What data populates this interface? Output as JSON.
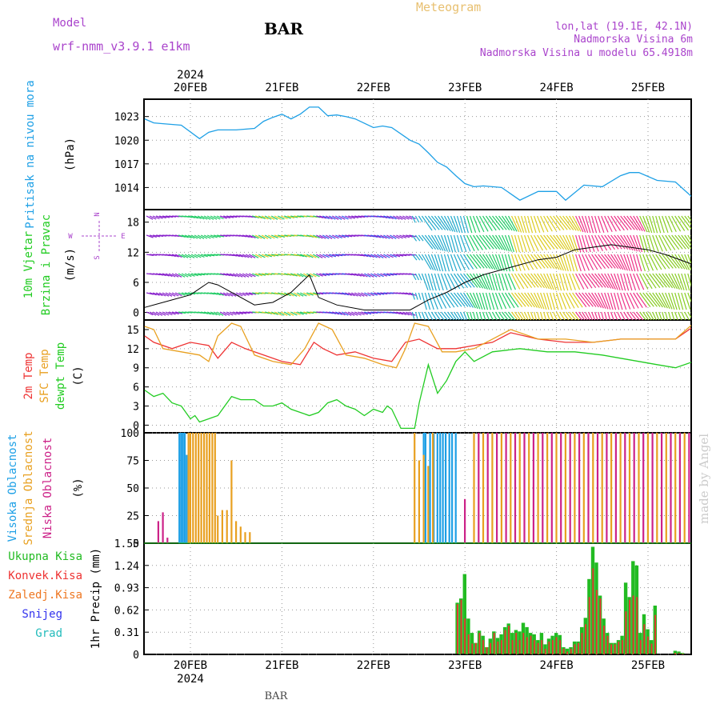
{
  "header": {
    "model_label": "Model",
    "model_name": "wrf-nmm_v3.9.1  e1km",
    "station": "BAR",
    "title": "Meteogram",
    "lonlat": "lon,lat (19.1E, 42.1N)",
    "elevation": "Nadmorska Visina 6m",
    "model_elevation": "Nadmorska Visina u modelu 65.4918m"
  },
  "time_axis": {
    "year": "2024",
    "days": [
      "20FEB",
      "21FEB",
      "22FEB",
      "23FEB",
      "24FEB",
      "25FEB"
    ],
    "footer_label": "BAR"
  },
  "watermark": "made by Angel",
  "panels": {
    "pressure": {
      "label": "Pritisak na nivou mora",
      "unit": "(hPa)",
      "ticks": [
        "1014",
        "1017",
        "1020",
        "1023"
      ],
      "color": "#1ea0e6"
    },
    "wind": {
      "label1": "10m Vjetar",
      "label2": "Brzina i Pravac",
      "unit": "(m/s)",
      "ticks": [
        "0",
        "6",
        "12",
        "18"
      ],
      "compass_n": "N",
      "compass_w": "W",
      "compass_e": "E",
      "compass_s": "S",
      "color": "#22cc22"
    },
    "temp": {
      "label1": "2m Temp",
      "label2": "SFC Temp",
      "label3": "dewpt Temp",
      "unit": "(C)",
      "ticks": [
        "0",
        "3",
        "6",
        "9",
        "12",
        "15"
      ],
      "colors": {
        "t2m": "#ee3333",
        "sfc": "#e8a020",
        "dewpt": "#22cc22"
      }
    },
    "clouds": {
      "label1": "Visoka Oblacnost",
      "label2": "Srednja Oblacnost",
      "label3": "Niska Oblacnost",
      "unit": "(%)",
      "ticks": [
        "0",
        "25",
        "50",
        "75",
        "100"
      ],
      "colors": {
        "high": "#1ea0e6",
        "mid": "#e8a020",
        "low": "#cc2288"
      }
    },
    "precip": {
      "unit": "1hr Precip (mm)",
      "ticks": [
        "0",
        "0.31",
        "0.62",
        "0.93",
        "1.24",
        "1.55"
      ],
      "legend": [
        {
          "label": "Ukupna  Kisa",
          "color": "#22bb22"
        },
        {
          "label": "Konvek.Kisa",
          "color": "#ee3333"
        },
        {
          "label": "Zaledj.Kisa",
          "color": "#ee7722"
        },
        {
          "label": "Snijeg",
          "color": "#3333ee"
        },
        {
          "label": "Grad",
          "color": "#22bbbb"
        }
      ]
    }
  },
  "chart_data": [
    {
      "type": "line",
      "title": "Pritisak na nivou mora",
      "ylabel": "(hPa)",
      "ylim": [
        1011.2,
        1025.2
      ],
      "x_unit": "days from 20FEB 00UTC",
      "series": [
        {
          "x": [
            -0.5,
            -0.4,
            -0.3,
            -0.1,
            0.1,
            0.2,
            0.3,
            0.5,
            0.7,
            0.8,
            0.9,
            1.0,
            1.1,
            1.2,
            1.3,
            1.4,
            1.5,
            1.6,
            1.7,
            1.8,
            2.0,
            2.1,
            2.2,
            2.4,
            2.5,
            2.6,
            2.7,
            2.8,
            2.9,
            3.0,
            3.1,
            3.2,
            3.4,
            3.6,
            3.8,
            4.0,
            4.1,
            4.3,
            4.5,
            4.7,
            4.8,
            4.9,
            5.1,
            5.3,
            5.5
          ],
          "y": [
            1022.7,
            1022.2,
            1022.1,
            1021.9,
            1020.2,
            1021.0,
            1021.3,
            1021.3,
            1021.5,
            1022.4,
            1022.9,
            1023.3,
            1022.7,
            1023.3,
            1024.2,
            1024.2,
            1023.1,
            1023.2,
            1023.0,
            1022.7,
            1021.6,
            1021.8,
            1021.6,
            1020.0,
            1019.5,
            1018.4,
            1017.2,
            1016.6,
            1015.5,
            1014.5,
            1014.1,
            1014.2,
            1014.0,
            1012.4,
            1013.5,
            1013.5,
            1012.4,
            1014.3,
            1014.1,
            1015.5,
            1015.9,
            1015.9,
            1014.9,
            1014.7,
            1012.6
          ]
        }
      ]
    },
    {
      "type": "line",
      "title": "10m Vjetar Brzina i Pravac",
      "ylabel": "(m/s)",
      "ylim": [
        -1.5,
        20.5
      ],
      "x_unit": "days from 20FEB 00UTC",
      "series": [
        {
          "name": "Brzina",
          "x": [
            -0.5,
            -0.2,
            0.0,
            0.2,
            0.3,
            0.5,
            0.7,
            0.9,
            1.1,
            1.3,
            1.4,
            1.6,
            1.9,
            2.1,
            2.4,
            2.6,
            2.8,
            3.0,
            3.2,
            3.5,
            3.8,
            4.0,
            4.2,
            4.4,
            4.6,
            4.8,
            5.0,
            5.2,
            5.5
          ],
          "y": [
            1.0,
            2.5,
            3.5,
            6.0,
            5.5,
            3.5,
            1.5,
            2.0,
            4.0,
            7.5,
            3.0,
            1.5,
            0.5,
            0.5,
            0.5,
            2.5,
            4.0,
            6.0,
            7.5,
            9.0,
            10.5,
            11.0,
            12.5,
            13.0,
            13.5,
            13.0,
            12.5,
            11.5,
            9.5
          ]
        }
      ]
    },
    {
      "type": "line",
      "title": "Temp",
      "ylabel": "(C)",
      "ylim": [
        -1.2,
        16.5
      ],
      "x_unit": "days from 20FEB 00UTC",
      "series": [
        {
          "name": "2m Temp",
          "x": [
            -0.5,
            -0.4,
            -0.2,
            0.0,
            0.2,
            0.3,
            0.45,
            0.6,
            0.8,
            1.0,
            1.2,
            1.35,
            1.45,
            1.6,
            1.8,
            2.0,
            2.2,
            2.35,
            2.5,
            2.7,
            2.9,
            3.1,
            3.3,
            3.5,
            3.8,
            4.1,
            4.4,
            4.7,
            5.0,
            5.3,
            5.5
          ],
          "y": [
            14.0,
            13.0,
            12.0,
            13.0,
            12.5,
            10.5,
            13.0,
            12.0,
            11.0,
            10.0,
            9.5,
            13.0,
            12.0,
            11.0,
            11.5,
            10.5,
            10.0,
            13.0,
            13.5,
            12.0,
            12.0,
            12.5,
            13.0,
            14.5,
            13.5,
            13.0,
            13.0,
            13.5,
            13.5,
            13.5,
            15.5
          ]
        },
        {
          "name": "SFC Temp",
          "x": [
            -0.5,
            -0.4,
            -0.3,
            -0.1,
            0.1,
            0.2,
            0.3,
            0.45,
            0.55,
            0.7,
            0.9,
            1.1,
            1.25,
            1.4,
            1.55,
            1.7,
            1.9,
            2.1,
            2.25,
            2.35,
            2.45,
            2.6,
            2.75,
            2.9,
            3.1,
            3.3,
            3.5,
            3.8,
            4.1,
            4.4,
            4.7,
            5.0,
            5.3,
            5.5
          ],
          "y": [
            15.5,
            15.0,
            12.0,
            11.5,
            11.0,
            10.0,
            14.0,
            16.0,
            15.5,
            11.0,
            10.0,
            9.5,
            12.0,
            16.0,
            15.0,
            11.0,
            10.5,
            9.5,
            9.0,
            12.0,
            16.0,
            15.5,
            11.5,
            11.5,
            12.0,
            13.5,
            15.0,
            13.5,
            13.5,
            13.0,
            13.5,
            13.5,
            13.5,
            16.0
          ]
        },
        {
          "name": "dewpt Temp",
          "x": [
            -0.5,
            -0.4,
            -0.3,
            -0.2,
            -0.1,
            0.0,
            0.05,
            0.1,
            0.2,
            0.3,
            0.45,
            0.55,
            0.7,
            0.8,
            0.9,
            1.0,
            1.1,
            1.2,
            1.3,
            1.4,
            1.5,
            1.6,
            1.7,
            1.8,
            1.9,
            2.0,
            2.1,
            2.15,
            2.2,
            2.3,
            2.45,
            2.5,
            2.6,
            2.7,
            2.8,
            2.9,
            3.0,
            3.1,
            3.3,
            3.6,
            3.9,
            4.2,
            4.5,
            4.7,
            4.9,
            5.1,
            5.3,
            5.5
          ],
          "y": [
            5.5,
            4.5,
            5.0,
            3.5,
            3.0,
            1.0,
            1.5,
            0.5,
            1.0,
            1.5,
            4.5,
            4.0,
            4.0,
            3.0,
            3.0,
            3.5,
            2.5,
            2.0,
            1.5,
            2.0,
            3.5,
            4.0,
            3.0,
            2.5,
            1.5,
            2.5,
            2.0,
            3.0,
            2.5,
            -0.5,
            -0.5,
            3.5,
            9.5,
            5.0,
            7.0,
            10.0,
            11.5,
            10.0,
            11.5,
            12.0,
            11.5,
            11.5,
            11.0,
            10.5,
            10.0,
            9.5,
            9.0,
            10.0
          ]
        }
      ]
    },
    {
      "type": "bar",
      "title": "Oblacnost",
      "ylabel": "(%)",
      "ylim": [
        0,
        100
      ],
      "x_unit": "days from 20FEB 00UTC",
      "series": [
        {
          "name": "Visoka Oblacnost",
          "x": [
            -0.12,
            -0.1,
            -0.08,
            -0.06,
            -0.04,
            2.55,
            2.57,
            2.62,
            2.66,
            2.7,
            2.73,
            2.76,
            2.79,
            2.83,
            2.86,
            2.9
          ],
          "values": [
            100,
            100,
            100,
            100,
            80,
            100,
            100,
            100,
            100,
            100,
            100,
            100,
            100,
            100,
            100,
            100
          ]
        },
        {
          "name": "Srednja Oblacnost",
          "x": [
            -0.02,
            0.0,
            0.03,
            0.06,
            0.09,
            0.12,
            0.15,
            0.18,
            0.21,
            0.24,
            0.27,
            0.3,
            0.35,
            0.4,
            0.45,
            0.5,
            0.55,
            0.6,
            0.65,
            2.45,
            2.5,
            2.55,
            2.6,
            2.65,
            3.1,
            3.2,
            3.3,
            3.4,
            3.5,
            3.6,
            3.7,
            3.8,
            3.9,
            4.0,
            4.1,
            4.2,
            4.3,
            4.4,
            4.5,
            4.6,
            4.7,
            4.8,
            4.9,
            5.0,
            5.1,
            5.2,
            5.3,
            5.4
          ],
          "values": [
            100,
            100,
            100,
            100,
            100,
            100,
            100,
            100,
            100,
            100,
            100,
            25,
            30,
            30,
            75,
            20,
            15,
            10,
            10,
            100,
            75,
            80,
            70,
            100,
            100,
            100,
            100,
            100,
            100,
            100,
            100,
            100,
            100,
            100,
            100,
            100,
            100,
            100,
            100,
            100,
            100,
            100,
            100,
            100,
            100,
            100,
            100,
            100
          ]
        },
        {
          "name": "Niska Oblacnost",
          "x": [
            -0.35,
            -0.3,
            -0.25,
            3.0,
            3.15,
            3.25,
            3.35,
            3.45,
            3.55,
            3.65,
            3.75,
            3.85,
            3.95,
            4.05,
            4.15,
            4.25,
            4.35,
            4.45,
            4.55,
            4.65,
            4.75,
            4.85,
            4.95,
            5.05,
            5.15,
            5.25,
            5.35,
            5.45
          ],
          "values": [
            20,
            28,
            5,
            40,
            100,
            100,
            100,
            100,
            100,
            100,
            100,
            100,
            100,
            100,
            100,
            100,
            100,
            100,
            100,
            100,
            100,
            100,
            100,
            100,
            100,
            100,
            100,
            100
          ]
        }
      ]
    },
    {
      "type": "bar",
      "title": "1hr Precip",
      "ylabel": "1hr Precip (mm)",
      "ylim": [
        0,
        1.55
      ],
      "x_unit": "days from 20FEB 00UTC",
      "x": [
        2.92,
        2.96,
        3.0,
        3.04,
        3.08,
        3.12,
        3.16,
        3.2,
        3.24,
        3.28,
        3.32,
        3.36,
        3.4,
        3.44,
        3.48,
        3.52,
        3.56,
        3.6,
        3.64,
        3.68,
        3.72,
        3.76,
        3.8,
        3.84,
        3.88,
        3.92,
        3.96,
        4.0,
        4.04,
        4.08,
        4.12,
        4.16,
        4.2,
        4.24,
        4.28,
        4.32,
        4.36,
        4.4,
        4.44,
        4.48,
        4.52,
        4.56,
        4.6,
        4.64,
        4.68,
        4.72,
        4.76,
        4.8,
        4.84,
        4.88,
        4.92,
        4.96,
        5.0,
        5.04,
        5.08,
        5.3,
        5.34,
        5.38
      ],
      "series": [
        {
          "name": "Ukupna  Kisa",
          "values": [
            0.72,
            0.78,
            1.12,
            0.5,
            0.3,
            0.16,
            0.33,
            0.26,
            0.1,
            0.22,
            0.32,
            0.23,
            0.28,
            0.38,
            0.43,
            0.3,
            0.34,
            0.32,
            0.44,
            0.38,
            0.3,
            0.28,
            0.2,
            0.3,
            0.14,
            0.22,
            0.26,
            0.3,
            0.27,
            0.1,
            0.08,
            0.1,
            0.18,
            0.18,
            0.38,
            0.51,
            1.05,
            1.5,
            1.28,
            0.82,
            0.5,
            0.3,
            0.16,
            0.16,
            0.2,
            0.26,
            1.0,
            0.8,
            1.3,
            1.24,
            0.3,
            0.56,
            0.35,
            0.2,
            0.68,
            0.05,
            0.04,
            0.02
          ]
        },
        {
          "name": "Konvek.Kisa",
          "values": [
            0.7,
            0.76,
            0.5,
            0.28,
            0.15,
            0.16,
            0.3,
            0.2,
            0.1,
            0.16,
            0.3,
            0.18,
            0.2,
            0.34,
            0.4,
            0.2,
            0.3,
            0.2,
            0.3,
            0.24,
            0.26,
            0.2,
            0.16,
            0.2,
            0.08,
            0.18,
            0.2,
            0.24,
            0.2,
            0.08,
            0.04,
            0.08,
            0.14,
            0.16,
            0.3,
            0.42,
            0.8,
            1.2,
            0.9,
            0.78,
            0.4,
            0.26,
            0.14,
            0.14,
            0.18,
            0.2,
            0.6,
            0.76,
            0.82,
            0.8,
            0.2,
            0.42,
            0.25,
            0.15,
            0.55,
            0.02,
            0.02,
            0.01
          ]
        }
      ]
    }
  ]
}
